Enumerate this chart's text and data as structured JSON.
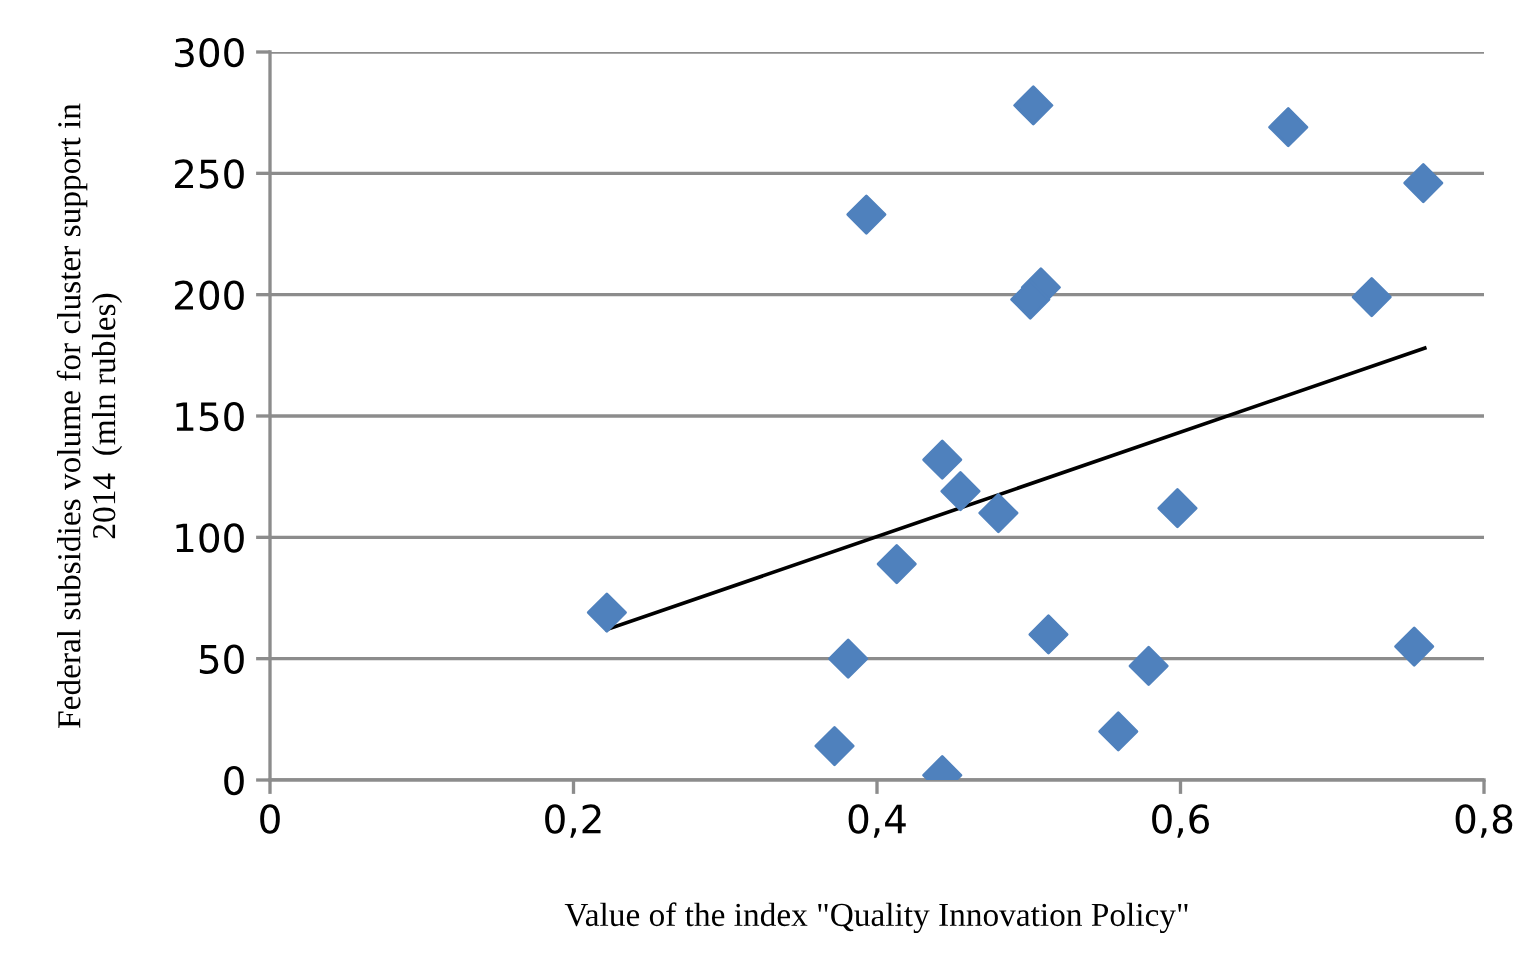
{
  "chart_data": {
    "type": "scatter",
    "xlabel": "Value of the index \"Quality Innovation Policy\"",
    "ylabel": "Federal subsidies volume for cluster support in\n2014  (mln rubles)",
    "xlim": [
      0,
      0.8
    ],
    "ylim": [
      0,
      300
    ],
    "xticks": [
      0,
      {
        "value": 0.2,
        "label": "0,2"
      },
      {
        "value": 0.4,
        "label": "0,4"
      },
      {
        "value": 0.6,
        "label": "0,6"
      },
      {
        "value": 0.8,
        "label": "0,8"
      }
    ],
    "yticks": [
      0,
      50,
      100,
      150,
      200,
      250,
      300
    ],
    "grid": "y",
    "legend": false,
    "series": [
      {
        "color": "#4f81bd",
        "marker": "diamond",
        "x": [
          0.222,
          0.393,
          0.381,
          0.372,
          0.503,
          0.671,
          0.76,
          0.508,
          0.501,
          0.726,
          0.443,
          0.455,
          0.48,
          0.598,
          0.413,
          0.513,
          0.754,
          0.579,
          0.559,
          0.443
        ],
        "values": [
          69,
          233,
          50,
          14,
          278,
          269,
          246,
          203,
          198,
          199,
          132,
          119,
          110,
          112,
          89,
          60,
          55,
          47,
          20,
          2
        ]
      },
      {
        "type": "line",
        "color": "#000000",
        "marker": "none",
        "line_style": "solid",
        "x": [
          0.222,
          0.761
        ],
        "values": [
          62,
          178
        ]
      }
    ]
  }
}
